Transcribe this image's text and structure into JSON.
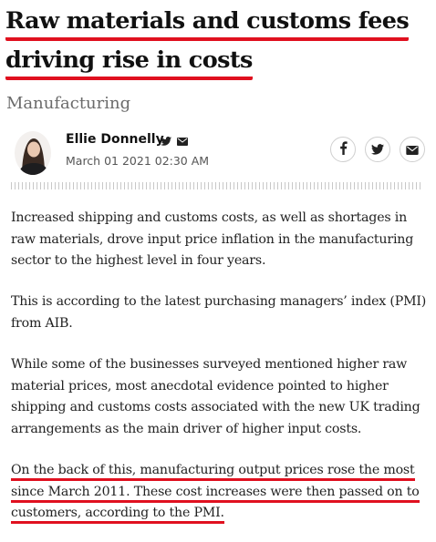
{
  "article": {
    "headline_lines": [
      "Raw materials and customs fees",
      "driving rise in costs"
    ],
    "section": "Manufacturing",
    "author": {
      "name": "Ellie Donnelly",
      "date": "March 01 2021 02:30 AM"
    },
    "share": {
      "icons": [
        "facebook-icon",
        "twitter-icon",
        "email-icon"
      ]
    },
    "paragraphs": [
      [
        "Increased shipping and customs costs, as well as shortages in",
        "raw materials, drove input price inflation in the manufacturing",
        "sector to the highest level in four years."
      ],
      [
        "This is according to the latest purchasing managers’ index (PMI)",
        "from AIB."
      ],
      [
        "While some of the businesses surveyed mentioned higher raw",
        "material prices, most anecdotal evidence pointed to higher",
        "shipping and customs costs associated with the new UK trading",
        "arrangements as the main driver of higher input costs."
      ]
    ],
    "highlighted_paragraph": [
      "On the back of this, manufacturing output prices rose the most",
      "since March 2011. These cost increases were then passed on to",
      "customers, according to the PMI."
    ],
    "highlighted_tail": "."
  },
  "colors": {
    "highlight": "#e0101f",
    "section": "#6b6b6b",
    "date": "#555555"
  }
}
